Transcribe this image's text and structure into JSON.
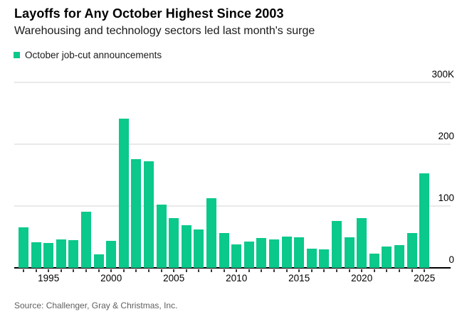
{
  "header": {
    "title": "Layoffs for Any October Highest Since 2003",
    "subtitle": "Warehousing and technology sectors led last month's surge"
  },
  "legend": {
    "label": "October job-cut announcements",
    "swatch_color": "#0bc88b"
  },
  "chart_data": {
    "type": "bar",
    "title": "Layoffs for Any October Highest Since 2003",
    "subtitle": "Warehousing and technology sectors led last month's surge",
    "series_name": "October job-cut announcements",
    "x": [
      1993,
      1994,
      1995,
      1996,
      1997,
      1998,
      1999,
      2000,
      2001,
      2002,
      2003,
      2004,
      2005,
      2006,
      2007,
      2008,
      2009,
      2010,
      2011,
      2012,
      2013,
      2014,
      2015,
      2016,
      2017,
      2018,
      2019,
      2020,
      2021,
      2022,
      2023,
      2024,
      2025
    ],
    "values": [
      66,
      41,
      40,
      46,
      45,
      91,
      22,
      44,
      242,
      176,
      172,
      102,
      81,
      69,
      62,
      113,
      56,
      38,
      43,
      48,
      46,
      51,
      50,
      31,
      30,
      76,
      50,
      81,
      23,
      34,
      37,
      56,
      153
    ],
    "unit": "thousands of job cuts",
    "ylim": [
      0,
      300
    ],
    "yticks": [
      0,
      100,
      200,
      300
    ],
    "ytick_labels": [
      "0",
      "100",
      "200",
      "300K"
    ],
    "xticks": [
      1995,
      2000,
      2005,
      2010,
      2015,
      2020,
      2025
    ],
    "xtick_labels": [
      "1995",
      "2000",
      "2005",
      "2010",
      "2015",
      "2020",
      "2025"
    ],
    "bar_color": "#0bc88b",
    "grid": "horizontal",
    "legend_position": "top-left",
    "y_axis_side": "right"
  },
  "footer": {
    "source": "Source: Challenger, Gray & Christmas, Inc."
  }
}
